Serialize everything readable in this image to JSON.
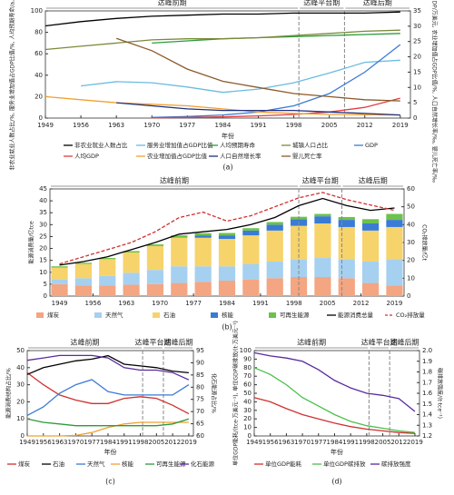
{
  "chart_data": [
    {
      "type": "line",
      "caption": "(a)",
      "xlabel": "年份",
      "ylabel": "非农业就业人数占比/%, 服务业增加值占GDP比值/%, 人均预期寿命/a, 城镇人口占比/%",
      "y2label": "GDP/万亿美元, 人均GDP/万美元, 农业增加值占GDP比值/%, 人口自然增长率/‰, 婴儿死亡率/‰",
      "annotations": [
        "达峰前期",
        "达峰平台期",
        "达峰后期"
      ],
      "vlines": [
        1999,
        2008
      ],
      "x": [
        1949,
        1956,
        1963,
        1970,
        1977,
        1984,
        1991,
        1998,
        2005,
        2012,
        2019
      ],
      "xlim": [
        1949,
        2021
      ],
      "xticks": [
        1949,
        1956,
        1963,
        1970,
        1977,
        1984,
        1991,
        1998,
        2005,
        2012,
        2019
      ],
      "ylim": [
        0,
        100
      ],
      "yticks": [
        0,
        20,
        40,
        60,
        80,
        100
      ],
      "y2lim": [
        0,
        35
      ],
      "y2ticks": [
        0,
        5,
        10,
        15,
        20,
        25,
        30,
        35
      ],
      "series": [
        {
          "name": "非农业就业人数占比",
          "color": "#000000",
          "values": [
            86,
            90,
            93,
            95,
            96,
            97,
            97,
            98,
            98,
            98,
            99
          ]
        },
        {
          "name": "服务业增加值占GDP比值",
          "color": "#6bbbe0",
          "values": [
            null,
            30,
            34,
            33,
            29,
            24,
            27,
            33,
            42,
            52,
            54
          ]
        },
        {
          "name": "人均预期寿命",
          "color": "#2e9a3a",
          "values": [
            null,
            null,
            null,
            70,
            72,
            74,
            75,
            76,
            77,
            78,
            79
          ]
        },
        {
          "name": "城镇人口占比",
          "color": "#7a8a3a",
          "values": [
            64,
            67,
            70,
            73,
            74,
            74,
            75,
            77,
            79,
            81,
            82
          ]
        },
        {
          "name": "GDP",
          "color": "#3a7bd5",
          "axis": "y2",
          "values": [
            null,
            null,
            null,
            0.2,
            0.5,
            1,
            2,
            4,
            8,
            15,
            24
          ]
        },
        {
          "name": "人均GDP",
          "color": "#e04040",
          "axis": "y2",
          "values": [
            null,
            null,
            null,
            0.1,
            0.2,
            0.4,
            0.7,
            1.2,
            2,
            3.5,
            6.5
          ]
        },
        {
          "name": "农业增加值占GDP比值",
          "color": "#f0a030",
          "axis": "y2",
          "values": [
            7,
            6,
            5,
            4.5,
            4,
            3,
            2,
            1.5,
            1.2,
            1.1,
            1
          ]
        },
        {
          "name": "人口自然增长率",
          "color": "#203080",
          "axis": "y2",
          "values": [
            null,
            null,
            5,
            4,
            3,
            2.5,
            2.5,
            2.5,
            2,
            1.5,
            1
          ]
        },
        {
          "name": "婴儿死亡率",
          "color": "#8b5a2b",
          "axis": "y2",
          "values": [
            null,
            null,
            26,
            22,
            16,
            12,
            10,
            8,
            7,
            6,
            5.6
          ]
        }
      ]
    },
    {
      "type": "bar",
      "caption": "(b)",
      "ylabel": "能源消费量/亿tce",
      "y2label": "CO₂排放量/亿t",
      "annotations": [
        "达峰前期",
        "达峰平台期",
        "达峰后期"
      ],
      "vlines": [
        1999,
        2008
      ],
      "x": [
        1949,
        1954,
        1959,
        1964,
        1969,
        1974,
        1979,
        1984,
        1989,
        1994,
        1999,
        2004,
        2009,
        2014,
        2019
      ],
      "xlim": [
        1947,
        2021
      ],
      "xticks": [
        1949,
        1956,
        1963,
        1970,
        1977,
        1984,
        1991,
        1998,
        2005,
        2012,
        2019
      ],
      "ylim": [
        0,
        45
      ],
      "yticks": [
        0,
        5,
        10,
        15,
        20,
        25,
        30,
        35,
        40,
        45
      ],
      "y2lim": [
        0,
        60
      ],
      "y2ticks": [
        0,
        10,
        20,
        30,
        40,
        50,
        60
      ],
      "series": [
        {
          "name": "煤炭",
          "color": "#f4a582",
          "values": [
            5,
            4.5,
            4.5,
            4.8,
            5,
            5.5,
            6,
            6.5,
            7,
            7.5,
            8,
            8,
            7.5,
            5.5,
            4.5
          ]
        },
        {
          "name": "天然气",
          "color": "#a6d0f0",
          "values": [
            2,
            3,
            4,
            5,
            6,
            7,
            6.5,
            6,
            6.5,
            7,
            7.5,
            8,
            8,
            9,
            11
          ]
        },
        {
          "name": "石油",
          "color": "#f6d36b",
          "values": [
            5,
            6,
            7,
            8.5,
            10,
            12,
            12,
            11.5,
            12,
            13,
            14,
            14.5,
            13.5,
            13,
            13.5
          ]
        },
        {
          "name": "核能",
          "color": "#3a7bd5",
          "values": [
            0,
            0,
            0,
            0,
            0,
            0.2,
            1,
            1.5,
            2,
            2.5,
            2.8,
            3,
            3,
            3,
            3
          ]
        },
        {
          "name": "可再生能源",
          "color": "#6cc24a",
          "values": [
            0.5,
            0.5,
            0.5,
            0.6,
            0.7,
            0.8,
            0.9,
            1,
            1,
            1.1,
            1,
            1,
            1.2,
            1.8,
            2.5
          ]
        },
        {
          "name": "能源消费总量",
          "color": "#000000",
          "type": "line",
          "values": [
            13,
            14.5,
            16.5,
            19.5,
            22.5,
            26,
            27,
            28,
            30,
            33,
            38,
            41,
            38,
            36,
            37
          ]
        },
        {
          "name": "CO₂排放量",
          "color": "#d03030",
          "type": "line",
          "dash": true,
          "axis": "y2",
          "values": [
            18,
            22,
            26,
            30,
            36,
            44,
            47,
            42,
            45,
            50,
            55,
            58,
            54,
            51,
            48
          ]
        }
      ]
    },
    {
      "type": "line",
      "caption": "(c)",
      "xlabel": "年份",
      "ylabel": "能源消费结构占比/%",
      "y2label": "化石能源占比/%",
      "annotations": [
        "达峰前期",
        "达峰平台期",
        "达峰后期"
      ],
      "vlines": [
        1999,
        2008
      ],
      "x": [
        1949,
        1956,
        1963,
        1970,
        1977,
        1984,
        1991,
        1998,
        2005,
        2012,
        2019
      ],
      "xlim": [
        1949,
        2021
      ],
      "xticks": [
        1949,
        1956,
        1963,
        1970,
        1977,
        1984,
        1991,
        1998,
        2005,
        2012,
        2019
      ],
      "ylim": [
        0,
        50
      ],
      "yticks": [
        0,
        10,
        20,
        30,
        40,
        50
      ],
      "y2lim": [
        60,
        95
      ],
      "y2ticks": [
        60,
        65,
        70,
        75,
        80,
        85,
        90,
        95
      ],
      "series": [
        {
          "name": "煤炭",
          "color": "#d03030",
          "values": [
            37,
            30,
            24,
            21,
            19,
            19,
            22,
            23,
            22,
            18,
            13
          ]
        },
        {
          "name": "石油",
          "color": "#000000",
          "values": [
            36,
            40,
            42,
            44,
            45,
            47,
            42,
            41,
            40,
            38,
            37
          ]
        },
        {
          "name": "天然气",
          "color": "#3a7bd5",
          "values": [
            12,
            17,
            25,
            30,
            33,
            26,
            24,
            24,
            24,
            24,
            30
          ]
        },
        {
          "name": "核能",
          "color": "#f0a030",
          "values": [
            0,
            0,
            0,
            0.3,
            2,
            5,
            7,
            8,
            8,
            8,
            8
          ]
        },
        {
          "name": "可再生能源",
          "color": "#2e9a3a",
          "values": [
            10,
            8,
            7,
            6,
            6,
            6,
            6,
            6,
            6,
            7,
            10
          ]
        },
        {
          "name": "化石能源",
          "color": "#5a2aa0",
          "axis": "y2",
          "values": [
            91,
            92,
            93,
            93,
            93,
            92,
            88,
            87,
            87,
            86,
            83
          ]
        }
      ]
    },
    {
      "type": "line",
      "caption": "(d)",
      "xlabel": "年份",
      "ylabel": "单位GDP能耗/(tce·万美元⁻¹), 单位GDP碳排放/(t·万美元⁻¹)",
      "y2label": "碳排放强度/(t·tce⁻¹)",
      "annotations": [
        "达峰前期",
        "达峰平台期",
        "达峰后期"
      ],
      "vlines": [
        1999,
        2008
      ],
      "x": [
        1949,
        1956,
        1963,
        1970,
        1977,
        1984,
        1991,
        1998,
        2005,
        2012,
        2019
      ],
      "xlim": [
        1949,
        2021
      ],
      "xticks": [
        1949,
        1956,
        1963,
        1970,
        1977,
        1984,
        1991,
        1998,
        2005,
        2012,
        2019
      ],
      "ylim": [
        0,
        100
      ],
      "yticks": [
        0,
        10,
        20,
        30,
        40,
        50,
        60,
        70,
        80,
        90,
        100
      ],
      "y2lim": [
        1.2,
        2
      ],
      "y2ticks": [
        1.2,
        1.3,
        1.4,
        1.5,
        1.6,
        1.7,
        1.8,
        1.9,
        {
          "value": 2,
          "label": "2.0"
        }
      ],
      "series": [
        {
          "name": "单位GDP能耗",
          "color": "#d03030",
          "values": [
            45,
            40,
            32,
            25,
            20,
            15,
            11,
            8,
            6,
            4,
            3
          ]
        },
        {
          "name": "单位GDP碳排放",
          "color": "#4ac04a",
          "values": [
            80,
            72,
            60,
            45,
            35,
            25,
            17,
            12,
            9,
            6,
            4
          ]
        },
        {
          "name": "碳排放强度",
          "color": "#5a2aa0",
          "axis": "y2",
          "values": [
            1.98,
            1.95,
            1.93,
            1.9,
            1.82,
            1.72,
            1.65,
            1.6,
            1.58,
            1.55,
            1.43
          ]
        }
      ]
    }
  ]
}
